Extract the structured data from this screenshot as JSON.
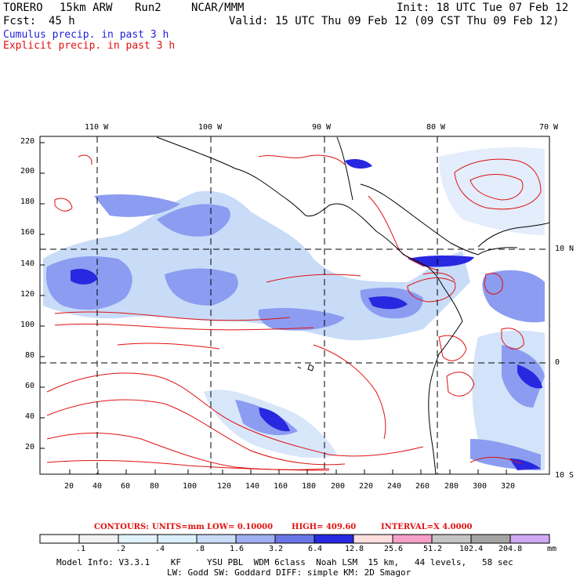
{
  "header": {
    "model": "TORERO",
    "grid": "15km ARW",
    "run": "Run2",
    "org": "NCAR/MMM",
    "init": "Init: 18 UTC Tue 07 Feb 12",
    "fcst_label": "Fcst:",
    "fcst_value": "45 h",
    "valid": "Valid: 15 UTC Thu 09 Feb 12 (09 CST Thu 09 Feb 12)"
  },
  "fields": {
    "cumulus": "Cumulus precip. in past 3 h",
    "explicit": "Explicit precip. in past 3 h"
  },
  "map": {
    "top_lon_labels": [
      "110 W",
      "100 W",
      "90 W",
      "80 W",
      "70 W"
    ],
    "right_lat_labels": [
      "10 N",
      "0",
      "10 S"
    ],
    "y_ticks": [
      "220",
      "200",
      "180",
      "160",
      "140",
      "120",
      "100",
      "80",
      "60",
      "40",
      "20"
    ],
    "x_ticks": [
      "20",
      "40",
      "60",
      "80",
      "100",
      "120",
      "140",
      "160",
      "180",
      "200",
      "220",
      "240",
      "260",
      "280",
      "300",
      "320"
    ],
    "colors": {
      "contour": "#e01010",
      "precip_light": "#c8dcf8",
      "precip_mid": "#8c9cf0",
      "precip_dark": "#2828e0",
      "coast": "#000000"
    }
  },
  "contours": {
    "label": "CONTOURS:",
    "units": "UNITS=mm",
    "low": "LOW= 0.10000",
    "high": "HIGH= 409.60",
    "interval": "INTERVAL=X 4.0000"
  },
  "colorbar": {
    "labels": [
      ".1",
      ".2",
      ".4",
      ".8",
      "1.6",
      "3.2",
      "6.4",
      "12.8",
      "25.6",
      "51.2",
      "102.4",
      "204.8"
    ],
    "unit": "mm",
    "colors": [
      "#ffffff",
      "#f2f2f2",
      "#e2f2fa",
      "#dcf0fc",
      "#c8dcf8",
      "#a0aef2",
      "#6a76e8",
      "#2828e0",
      "#fcdede",
      "#f4a0c8",
      "#c4c4c4",
      "#a4a4a4",
      "#d0a8f4"
    ]
  },
  "footer": {
    "line1": "Model Info: V3.3.1    KF     YSU PBL  WDM 6class  Noah LSM  15 km,   44 levels,   58 sec",
    "line2": "LW: Godd SW: Goddard DIFF: simple KM: 2D Smagor"
  }
}
